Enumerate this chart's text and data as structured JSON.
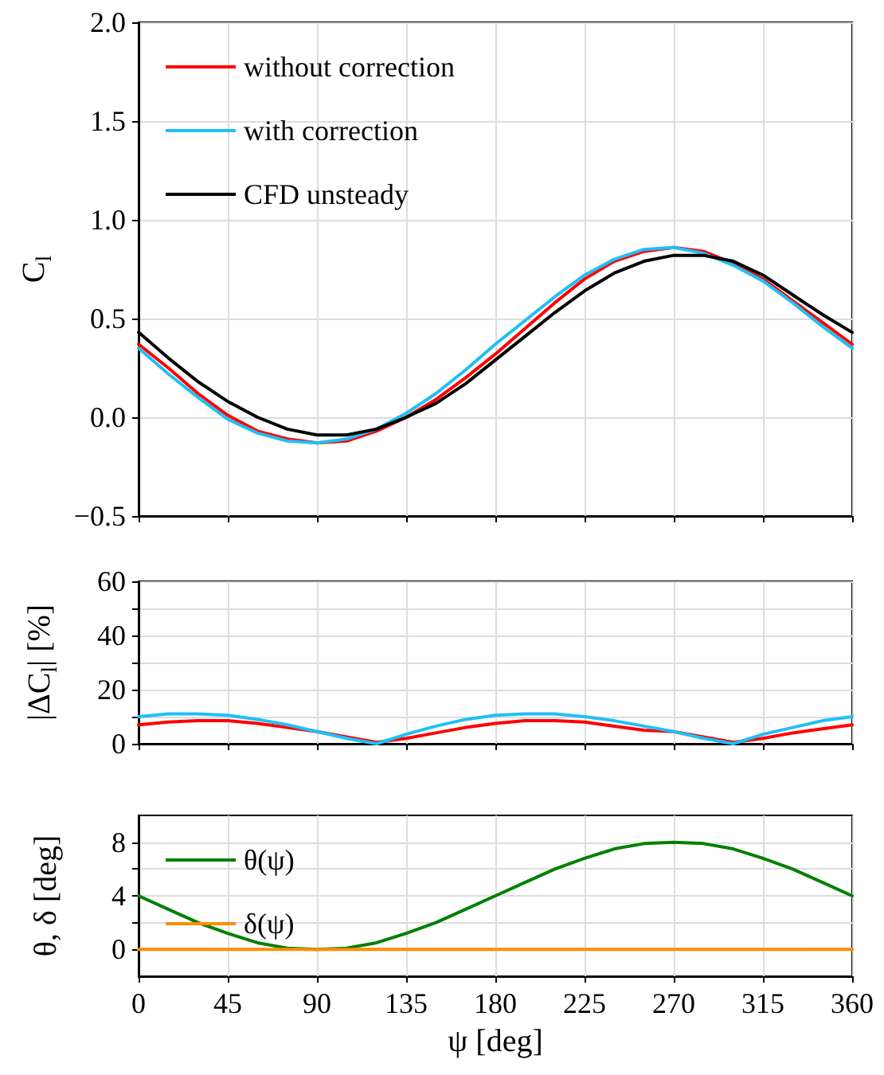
{
  "chart_data": [
    {
      "type": "line",
      "ylabel": "C$_{l}$",
      "x": [
        0,
        15,
        30,
        45,
        60,
        75,
        90,
        105,
        120,
        135,
        150,
        165,
        180,
        195,
        210,
        225,
        240,
        255,
        270,
        285,
        300,
        315,
        330,
        345,
        360
      ],
      "series": [
        {
          "name": "without correction",
          "color": "#ff0000",
          "values": [
            0.37,
            0.25,
            0.12,
            0.01,
            -0.07,
            -0.11,
            -0.13,
            -0.12,
            -0.07,
            0.0,
            0.09,
            0.2,
            0.32,
            0.45,
            0.58,
            0.7,
            0.79,
            0.84,
            0.86,
            0.84,
            0.78,
            0.7,
            0.59,
            0.48,
            0.37
          ]
        },
        {
          "name": "with correction",
          "color": "#1ec0f5",
          "values": [
            0.35,
            0.22,
            0.1,
            -0.01,
            -0.08,
            -0.12,
            -0.13,
            -0.11,
            -0.06,
            0.02,
            0.12,
            0.24,
            0.37,
            0.49,
            0.61,
            0.72,
            0.8,
            0.85,
            0.86,
            0.83,
            0.77,
            0.69,
            0.58,
            0.46,
            0.35
          ]
        },
        {
          "name": "CFD unsteady",
          "color": "#000000",
          "values": [
            0.43,
            0.3,
            0.18,
            0.08,
            0.0,
            -0.06,
            -0.09,
            -0.09,
            -0.06,
            0.0,
            0.07,
            0.17,
            0.29,
            0.41,
            0.53,
            0.64,
            0.73,
            0.79,
            0.82,
            0.82,
            0.79,
            0.72,
            0.62,
            0.52,
            0.43
          ]
        }
      ],
      "xlim": [
        0,
        360
      ],
      "xticks": [
        0,
        45,
        90,
        135,
        180,
        225,
        270,
        315,
        360
      ],
      "ylim": [
        -0.5,
        2.0
      ],
      "yticks": [
        {
          "value": -0.5,
          "label": "−0.5"
        },
        {
          "value": 0,
          "label": "0.0"
        },
        0.5,
        {
          "value": 1,
          "label": "1.0"
        },
        1.5,
        {
          "value": 2,
          "label": "2.0"
        }
      ],
      "grid": true,
      "legend": "top left",
      "tick_labels": "y",
      "marker": "none",
      "line_style": "solid"
    },
    {
      "type": "line",
      "ylabel": "|ΔC$_{l}$| [%]",
      "x": [
        0,
        15,
        30,
        45,
        60,
        75,
        90,
        105,
        120,
        135,
        150,
        165,
        180,
        195,
        210,
        225,
        240,
        255,
        270,
        285,
        300,
        315,
        330,
        345,
        360
      ],
      "series": [
        {
          "color": "#ff0000",
          "values": [
            7,
            8,
            8.5,
            8.5,
            7.5,
            6,
            4.5,
            2.5,
            0.5,
            2,
            4,
            6,
            7.5,
            8.5,
            8.5,
            8,
            6.5,
            5,
            4.5,
            2.5,
            0.5,
            2,
            4,
            5.5,
            7
          ]
        },
        {
          "color": "#1ec0f5",
          "values": [
            10,
            11,
            11,
            10.5,
            9,
            7,
            4.5,
            2,
            0,
            3.5,
            6.5,
            9,
            10.5,
            11,
            11,
            10,
            8.5,
            6.5,
            4.5,
            2,
            0,
            3.5,
            6,
            8.5,
            10
          ]
        }
      ],
      "xlim": [
        0,
        360
      ],
      "xticks": [
        0,
        45,
        90,
        135,
        180,
        225,
        270,
        315,
        360
      ],
      "ylim": [
        0,
        60
      ],
      "yticks": [
        0,
        {
          "value": 10,
          "label": null
        },
        20,
        {
          "value": 30,
          "label": null
        },
        40,
        {
          "value": 50,
          "label": null
        },
        60
      ],
      "grid": true,
      "tick_labels": "y",
      "marker": "none",
      "line_style": "solid"
    },
    {
      "type": "line",
      "xlabel": "ψ [deg]",
      "ylabel": "θ, δ [deg]",
      "x": [
        0,
        15,
        30,
        45,
        60,
        75,
        90,
        105,
        120,
        135,
        150,
        165,
        180,
        195,
        210,
        225,
        240,
        255,
        270,
        285,
        300,
        315,
        330,
        345,
        360
      ],
      "series": [
        {
          "name": "θ(ψ)",
          "color": "#008000",
          "values": [
            4,
            3,
            2,
            1.2,
            0.5,
            0.1,
            0,
            0.1,
            0.5,
            1.2,
            2,
            3,
            4,
            5,
            6,
            6.8,
            7.5,
            7.9,
            8,
            7.9,
            7.5,
            6.8,
            6,
            5,
            4
          ]
        },
        {
          "name": "δ(ψ)",
          "color": "#ff8c00",
          "x": [
            0,
            360
          ],
          "values": [
            0,
            0
          ]
        }
      ],
      "xlim": [
        0,
        360
      ],
      "xticks": [
        0,
        45,
        90,
        135,
        180,
        225,
        270,
        315,
        360
      ],
      "ylim": [
        -2,
        10
      ],
      "yticks": [
        0,
        {
          "value": 2,
          "label": null
        },
        4,
        {
          "value": 6,
          "label": null
        },
        8
      ],
      "grid": true,
      "legend": "top left",
      "marker": "none",
      "line_style": "solid"
    }
  ]
}
